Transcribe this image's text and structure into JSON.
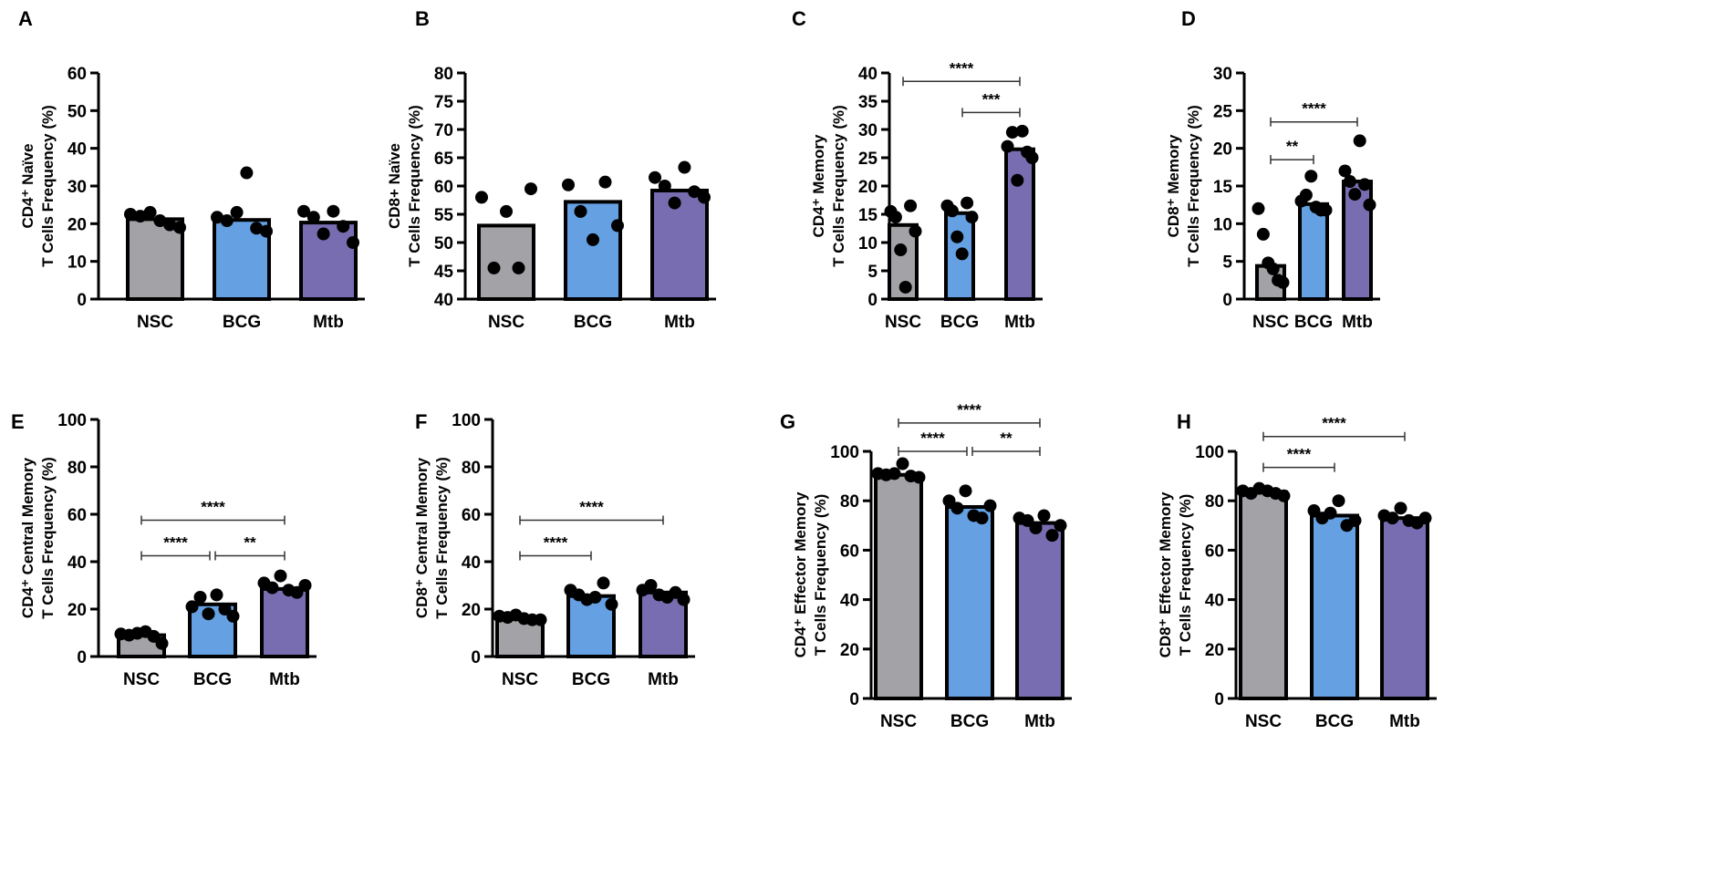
{
  "colors": {
    "NSC": "#a2a2a7",
    "BCG": "#64a0e2",
    "Mtb": "#786db0"
  },
  "chart_data": [
    {
      "type": "bar",
      "panel": "A",
      "categories": [
        "NSC",
        "BCG",
        "Mtb"
      ],
      "ylabel": [
        "CD4⁺ Naïve",
        "T Cells Frequency (%)"
      ],
      "ylim": [
        0,
        60
      ],
      "yticks": [
        0,
        10,
        20,
        30,
        40,
        50,
        60
      ],
      "values": [
        21.2,
        21.0,
        20.3
      ],
      "points": [
        [
          22.5,
          22,
          23,
          20.8,
          19.7,
          19
        ],
        [
          21.7,
          20.8,
          23,
          33.5,
          18.8,
          18
        ],
        [
          23.3,
          21.7,
          17.3,
          23.3,
          19.3,
          15
        ]
      ],
      "significance": []
    },
    {
      "type": "bar",
      "panel": "B",
      "categories": [
        "NSC",
        "BCG",
        "Mtb"
      ],
      "ylabel": [
        "CD8+ Naïve",
        "T Cells Frequency (%)"
      ],
      "ylim": [
        40,
        80
      ],
      "yticks": [
        40,
        45,
        50,
        55,
        60,
        65,
        70,
        75,
        80
      ],
      "values": [
        53.0,
        57.2,
        59.2
      ],
      "points": [
        [
          58,
          45.5,
          55.5,
          45.5,
          59.5
        ],
        [
          60.2,
          55.5,
          50.5,
          60.7,
          53
        ],
        [
          61.5,
          60,
          57,
          63.3,
          59,
          58
        ]
      ],
      "significance": []
    },
    {
      "type": "bar",
      "panel": "C",
      "categories": [
        "NSC",
        "BCG",
        "Mtb"
      ],
      "ylabel": [
        "CD4⁺ Memory",
        "T Cells Frequency (%)"
      ],
      "ylim": [
        0,
        40
      ],
      "yticks": [
        0,
        5,
        10,
        15,
        20,
        25,
        30,
        35,
        40
      ],
      "values": [
        13.1,
        15.2,
        26.5
      ],
      "points": [
        [
          15.5,
          14.5,
          8.7,
          2.1,
          16.5,
          12
        ],
        [
          16.5,
          15.6,
          11,
          8,
          17,
          14.5
        ],
        [
          27,
          29.5,
          21,
          29.7,
          26,
          25
        ]
      ],
      "significance": [
        {
          "from": "NSC",
          "to": "Mtb",
          "level": 38.5,
          "label": "****"
        },
        {
          "from": "BCG",
          "to": "Mtb",
          "level": 33,
          "label": "***"
        }
      ]
    },
    {
      "type": "bar",
      "panel": "D",
      "categories": [
        "NSC",
        "BCG",
        "Mtb"
      ],
      "ylabel": [
        "CD8⁺ Memory",
        "T Cells Frequency (%)"
      ],
      "ylim": [
        0,
        30
      ],
      "yticks": [
        0,
        5,
        10,
        15,
        20,
        25,
        30
      ],
      "values": [
        4.4,
        12.6,
        15.6
      ],
      "points": [
        [
          12,
          8.6,
          4.8,
          4,
          2.5,
          2.2
        ],
        [
          13,
          13.8,
          16.3,
          12.2,
          11.8,
          11.8
        ],
        [
          17,
          15.6,
          13.9,
          21,
          15.2,
          12.5
        ]
      ],
      "significance": [
        {
          "from": "NSC",
          "to": "Mtb",
          "level": 23.5,
          "label": "****"
        },
        {
          "from": "NSC",
          "to": "BCG",
          "level": 18.5,
          "label": "**"
        }
      ]
    },
    {
      "type": "bar",
      "panel": "E",
      "categories": [
        "NSC",
        "BCG",
        "Mtb"
      ],
      "ylabel": [
        "CD4⁺ Central Memory",
        "T Cells Frequency (%)"
      ],
      "ylim": [
        0,
        100
      ],
      "yticks": [
        0,
        20,
        40,
        60,
        80,
        100
      ],
      "values": [
        9.0,
        22.0,
        28.5
      ],
      "points": [
        [
          9.5,
          9,
          9.8,
          10.5,
          8.5,
          5.5
        ],
        [
          21,
          25,
          18,
          26,
          20,
          17
        ],
        [
          31,
          29,
          34,
          28,
          27,
          30
        ]
      ],
      "significance": [
        {
          "from": "NSC",
          "to": "Mtb",
          "level": 57.5,
          "label": "****"
        },
        {
          "from": "NSC",
          "to": "BCG",
          "level": 42.5,
          "label": "****"
        },
        {
          "from": "BCG",
          "to": "Mtb",
          "level": 42.5,
          "label": "**"
        }
      ]
    },
    {
      "type": "bar",
      "panel": "F",
      "categories": [
        "NSC",
        "BCG",
        "Mtb"
      ],
      "ylabel": [
        "CD8⁺ Central Memory",
        "T Cells Frequency (%)"
      ],
      "ylim": [
        0,
        100
      ],
      "yticks": [
        0,
        20,
        40,
        60,
        80,
        100
      ],
      "values": [
        16.5,
        25.5,
        27.0
      ],
      "points": [
        [
          17,
          16.5,
          17.5,
          16,
          15.5,
          15.5
        ],
        [
          28,
          26,
          24,
          25,
          31,
          22
        ],
        [
          28,
          30,
          26,
          25,
          27,
          24
        ]
      ],
      "significance": [
        {
          "from": "NSC",
          "to": "Mtb",
          "level": 57.5,
          "label": "****"
        },
        {
          "from": "NSC",
          "to": "BCG",
          "level": 42.5,
          "label": "****"
        }
      ]
    },
    {
      "type": "bar",
      "panel": "G",
      "categories": [
        "NSC",
        "BCG",
        "Mtb"
      ],
      "ylabel": [
        "CD4⁺ Effector Memory",
        "T Cells Frequency (%)"
      ],
      "ylim": [
        0,
        100
      ],
      "yticks": [
        0,
        20,
        40,
        60,
        80,
        100
      ],
      "values": [
        90.5,
        77.5,
        71.0
      ],
      "points": [
        [
          91,
          90.5,
          91,
          95,
          90,
          89.5
        ],
        [
          80,
          77,
          84,
          74,
          73,
          78
        ],
        [
          73,
          72,
          69,
          74,
          66,
          70
        ]
      ],
      "significance": [
        {
          "from": "NSC",
          "to": "Mtb",
          "level": 111.5,
          "label": "****"
        },
        {
          "from": "NSC",
          "to": "BCG",
          "level": 100,
          "label": "****"
        },
        {
          "from": "BCG",
          "to": "Mtb",
          "level": 100,
          "label": "**"
        }
      ]
    },
    {
      "type": "bar",
      "panel": "H",
      "categories": [
        "NSC",
        "BCG",
        "Mtb"
      ],
      "ylabel": [
        "CD8⁺ Effector Memory",
        "T Cells Frequency (%)"
      ],
      "ylim": [
        0,
        100
      ],
      "yticks": [
        0,
        20,
        40,
        60,
        80,
        100
      ],
      "values": [
        83.5,
        74.0,
        73.0
      ],
      "points": [
        [
          84,
          83,
          85,
          84,
          83,
          82
        ],
        [
          76,
          73,
          75,
          80,
          70,
          72
        ],
        [
          74,
          73,
          77,
          72,
          71,
          73
        ]
      ],
      "significance": [
        {
          "from": "NSC",
          "to": "Mtb",
          "level": 106,
          "label": "****"
        },
        {
          "from": "NSC",
          "to": "BCG",
          "level": 93.5,
          "label": "****"
        }
      ]
    }
  ]
}
